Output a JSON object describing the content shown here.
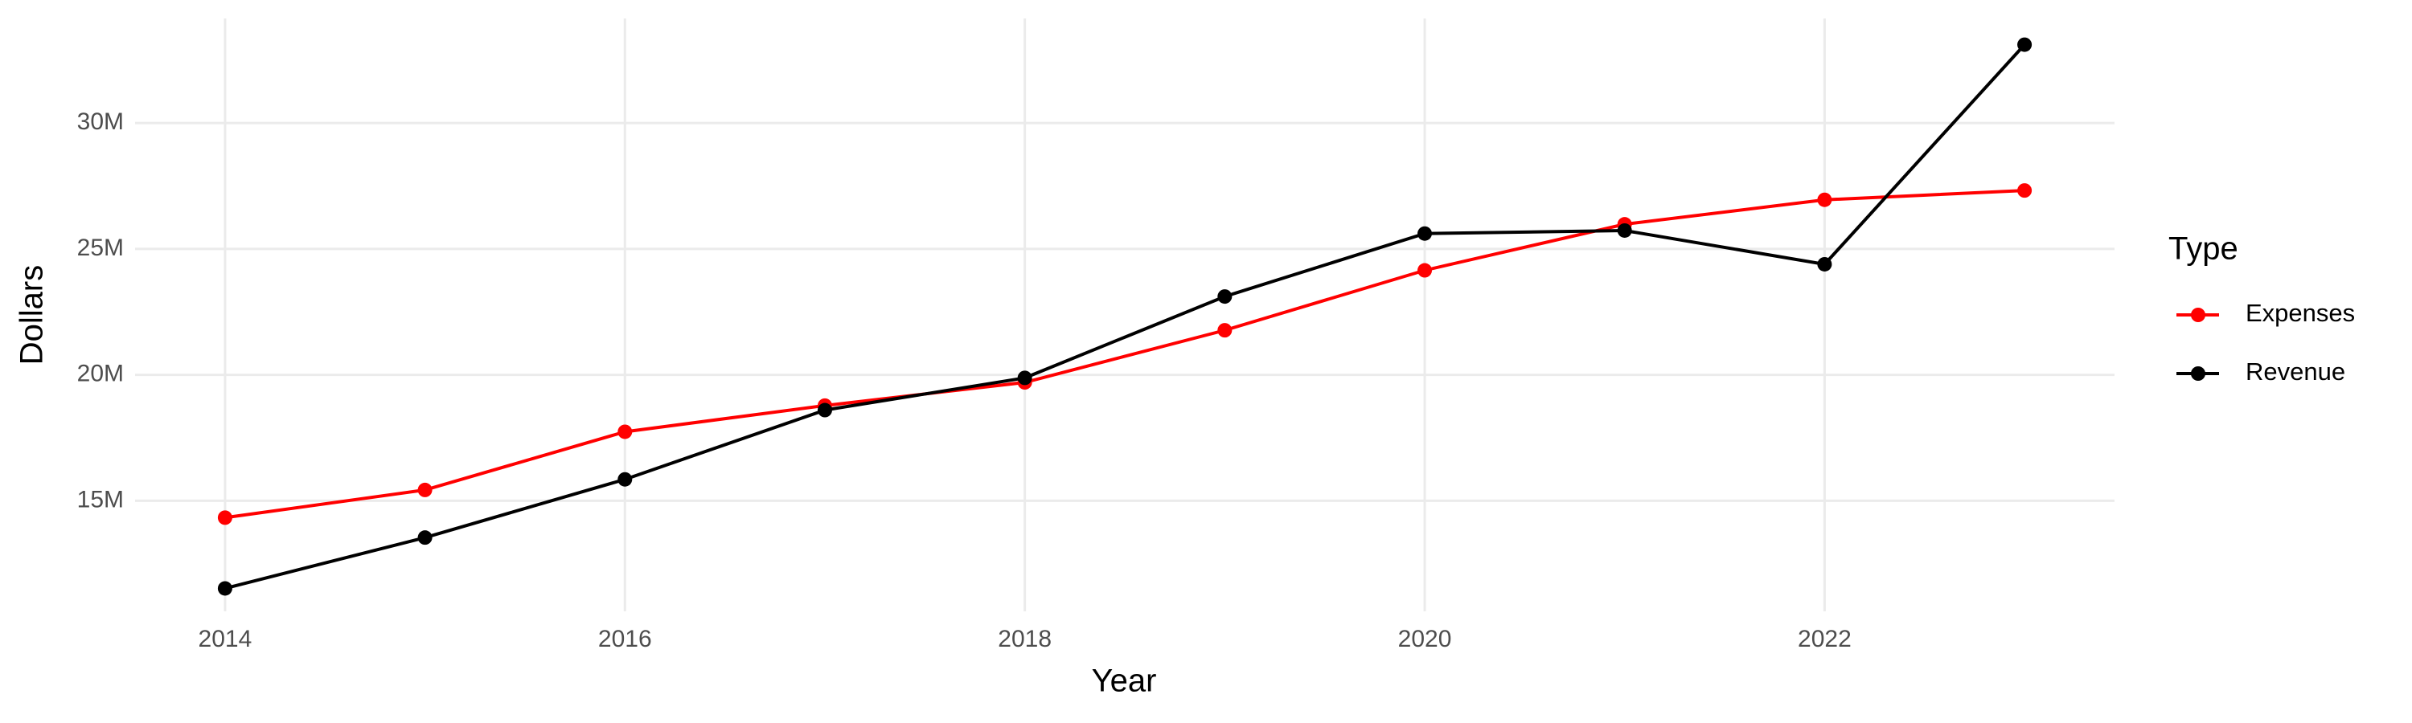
{
  "chart_data": {
    "type": "line",
    "x_label": "Year",
    "y_label": "Dollars",
    "x": [
      2014,
      2015,
      2016,
      2017,
      2018,
      2019,
      2020,
      2021,
      2022,
      2023
    ],
    "series": [
      {
        "name": "Expenses",
        "color": "#ff0000",
        "values": [
          14330000,
          15430000,
          17740000,
          18780000,
          19700000,
          21770000,
          24150000,
          25980000,
          26950000,
          27320000
        ]
      },
      {
        "name": "Revenue",
        "color": "#000000",
        "values": [
          11520000,
          13540000,
          15850000,
          18600000,
          19880000,
          23110000,
          25610000,
          25730000,
          24390000,
          33110000
        ]
      }
    ],
    "legend_title": "Type",
    "legend": "right",
    "xlim": [
      2013.55,
      2023.45
    ],
    "xticks": [
      2014,
      2016,
      2018,
      2020,
      2022
    ],
    "ylim": [
      10610000,
      34150000
    ],
    "yticks": [
      {
        "value": 15000000,
        "label": "15M"
      },
      {
        "value": 20000000,
        "label": "20M"
      },
      {
        "value": 25000000,
        "label": "25M"
      },
      {
        "value": 30000000,
        "label": "30M"
      }
    ],
    "grid": true
  }
}
